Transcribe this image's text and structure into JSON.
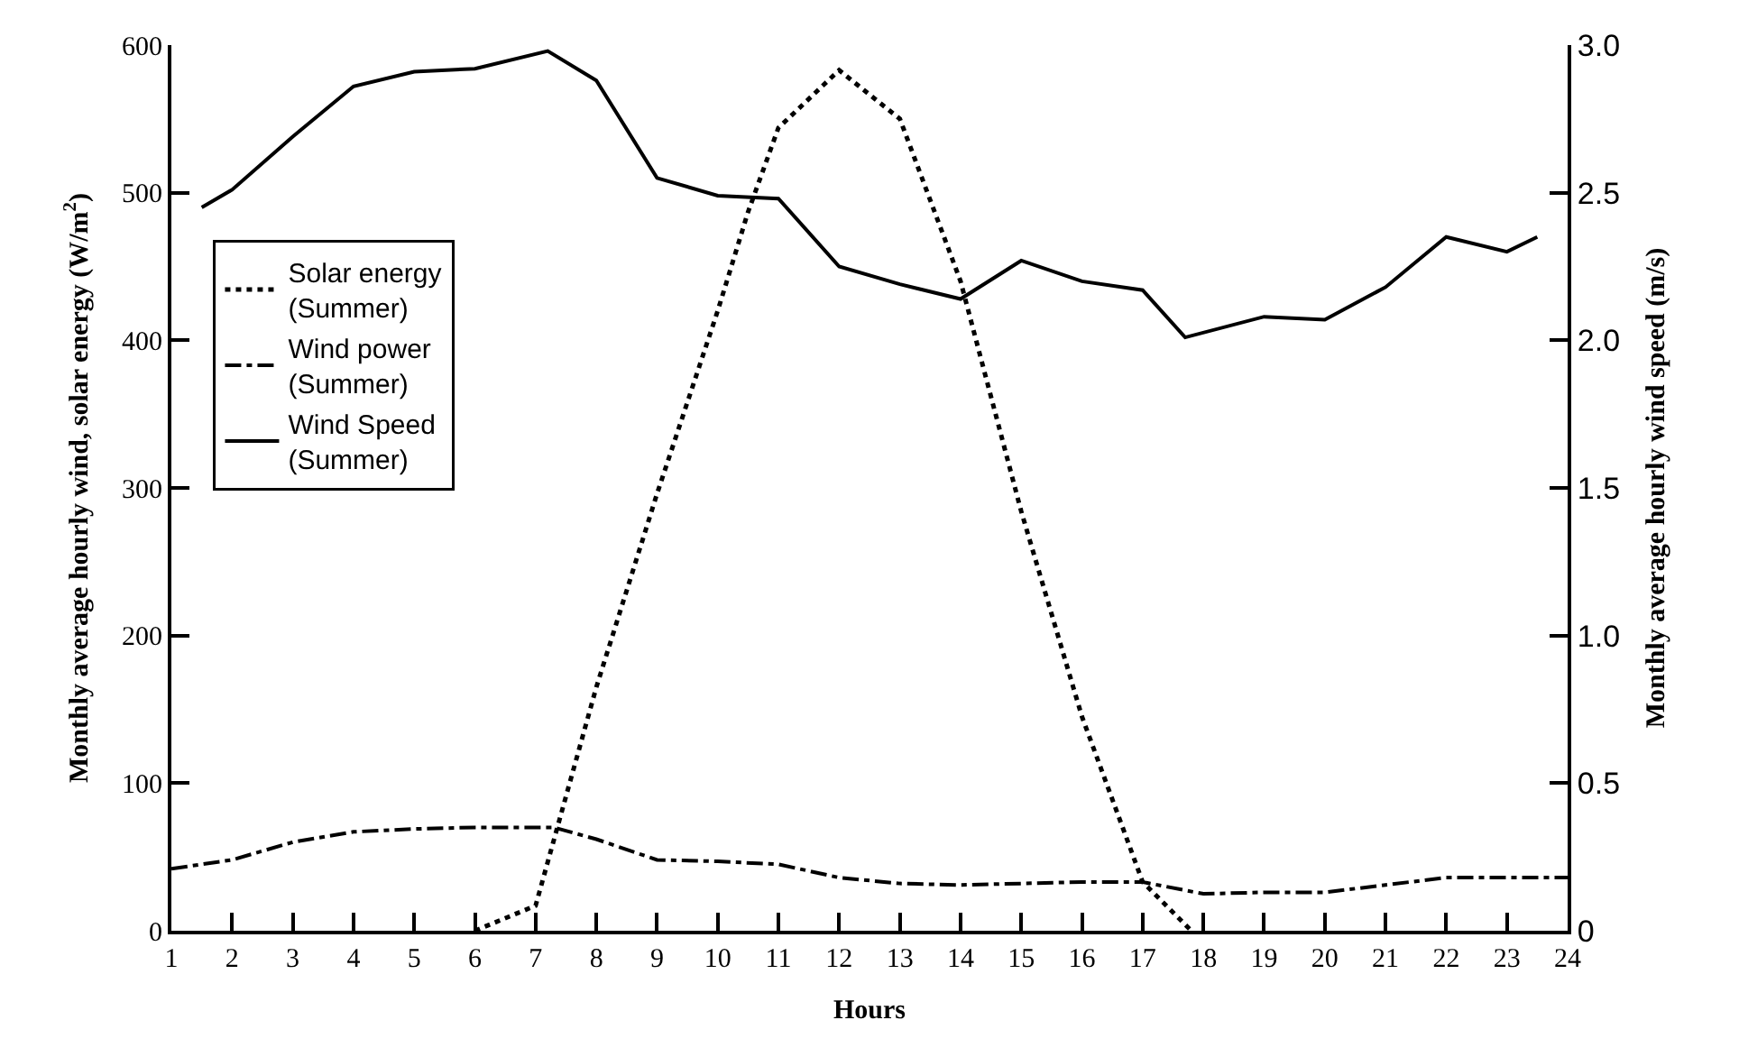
{
  "chart_data": {
    "type": "line",
    "xlabel": "Hours",
    "ylabel": "Monthly average hourly wind, solar energy (W/m$^{2}$)",
    "y2label": "Monthly average hourly wind speed (m/s)",
    "xlim": [
      1,
      24
    ],
    "xticks": [
      1,
      2,
      3,
      4,
      5,
      6,
      7,
      8,
      9,
      10,
      11,
      12,
      13,
      14,
      15,
      16,
      17,
      18,
      19,
      20,
      21,
      22,
      23,
      24
    ],
    "ylim": [
      0,
      600
    ],
    "yticks": [
      0,
      100,
      200,
      300,
      400,
      500,
      600
    ],
    "y2lim": [
      0,
      3.0
    ],
    "y2ticks": [
      0,
      {
        "value": 0.5,
        "label": "0.5"
      },
      {
        "value": 1.0,
        "label": "1.0"
      },
      {
        "value": 1.5,
        "label": "1.5"
      },
      {
        "value": 2.0,
        "label": "2.0"
      },
      {
        "value": 2.5,
        "label": "2.5"
      },
      {
        "value": 3.0,
        "label": "3.0"
      }
    ],
    "legend": "top left",
    "marker": "none",
    "series": [
      {
        "name": "Solar energy (Summer)",
        "color": "#000000",
        "line_style": "dotted",
        "x": [
          6,
          7,
          8,
          9,
          10,
          10.5,
          11,
          12,
          13,
          14,
          15,
          16,
          17,
          17.8
        ],
        "values": [
          0,
          17,
          165,
          296,
          420,
          487,
          544,
          583,
          550,
          440,
          284,
          145,
          33,
          0
        ]
      },
      {
        "name": "Wind power (Summer)",
        "color": "#000000",
        "line_style": "dashdot",
        "x": [
          1,
          2,
          3,
          4,
          5,
          6,
          7.3,
          8,
          9,
          10,
          11,
          12,
          13,
          14,
          15,
          16,
          17,
          18,
          19,
          20,
          21,
          22,
          23,
          24
        ],
        "values": [
          42,
          48,
          60,
          67,
          69,
          70,
          70,
          62,
          48,
          47,
          45,
          36,
          32,
          31,
          32,
          33,
          33,
          25,
          26,
          26,
          31,
          36,
          36,
          36
        ]
      },
      {
        "name": "Wind Speed (Summer)",
        "color": "#000000",
        "line_style": "solid",
        "axis": "y2",
        "x": [
          1.5,
          2,
          3,
          4,
          5,
          6,
          7.2,
          8,
          9,
          10,
          11,
          12,
          13,
          14,
          15,
          16,
          17,
          17.7,
          19,
          20,
          21,
          22,
          23,
          23.5
        ],
        "values": [
          2.45,
          2.51,
          2.69,
          2.86,
          2.91,
          2.92,
          2.98,
          2.88,
          2.55,
          2.49,
          2.48,
          2.25,
          2.19,
          2.14,
          2.27,
          2.2,
          2.17,
          2.01,
          2.08,
          2.07,
          2.18,
          2.35,
          2.3,
          2.35
        ]
      }
    ]
  }
}
